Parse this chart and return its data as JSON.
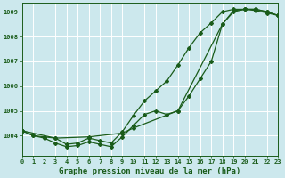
{
  "xlabel": "Graphe pression niveau de la mer (hPa)",
  "background_color": "#cce8ed",
  "grid_color": "#b0d8de",
  "line_color": "#1a5c1a",
  "series1": {
    "x": [
      0,
      1,
      2,
      3,
      4,
      5,
      6,
      7,
      8,
      9,
      10,
      11,
      12,
      13,
      14,
      15,
      16,
      17,
      18,
      19,
      20,
      21,
      22,
      23
    ],
    "y": [
      1004.2,
      1004.0,
      1003.9,
      1003.7,
      1003.55,
      1003.6,
      1003.75,
      1003.65,
      1003.55,
      1003.95,
      1004.4,
      1004.85,
      1005.0,
      1004.85,
      1005.0,
      1005.6,
      1006.3,
      1007.0,
      1008.5,
      1009.0,
      1009.1,
      1009.1,
      1009.0,
      1008.85
    ]
  },
  "series2": {
    "x": [
      0,
      1,
      2,
      3,
      4,
      5,
      6,
      7,
      8,
      9,
      10,
      11,
      12,
      13,
      14,
      15,
      16,
      17,
      18,
      19,
      20,
      21,
      22,
      23
    ],
    "y": [
      1004.2,
      1004.0,
      1003.95,
      1003.9,
      1003.65,
      1003.7,
      1003.9,
      1003.8,
      1003.7,
      1004.15,
      1004.8,
      1005.4,
      1005.8,
      1006.2,
      1006.85,
      1007.55,
      1008.15,
      1008.55,
      1009.0,
      1009.1,
      1009.1,
      1009.05,
      1008.95,
      1008.85
    ]
  },
  "series3": {
    "x": [
      0,
      3,
      6,
      9,
      10,
      14,
      18,
      19,
      20,
      21,
      22,
      23
    ],
    "y": [
      1004.2,
      1003.9,
      1003.95,
      1004.1,
      1004.3,
      1005.0,
      1008.5,
      1009.05,
      1009.1,
      1009.1,
      1009.0,
      1008.85
    ]
  },
  "ylim": [
    1003.2,
    1009.35
  ],
  "xlim": [
    0,
    23
  ],
  "yticks": [
    1004,
    1005,
    1006,
    1007,
    1008,
    1009
  ],
  "xticks": [
    0,
    1,
    2,
    3,
    4,
    5,
    6,
    7,
    8,
    9,
    10,
    11,
    12,
    13,
    14,
    15,
    16,
    17,
    18,
    19,
    20,
    21,
    22,
    23
  ],
  "tick_fontsize": 5.0,
  "label_fontsize": 6.5,
  "marker": "D",
  "markersize": 2.0,
  "linewidth": 0.9,
  "figwidth": 3.2,
  "figheight": 2.0,
  "dpi": 100
}
